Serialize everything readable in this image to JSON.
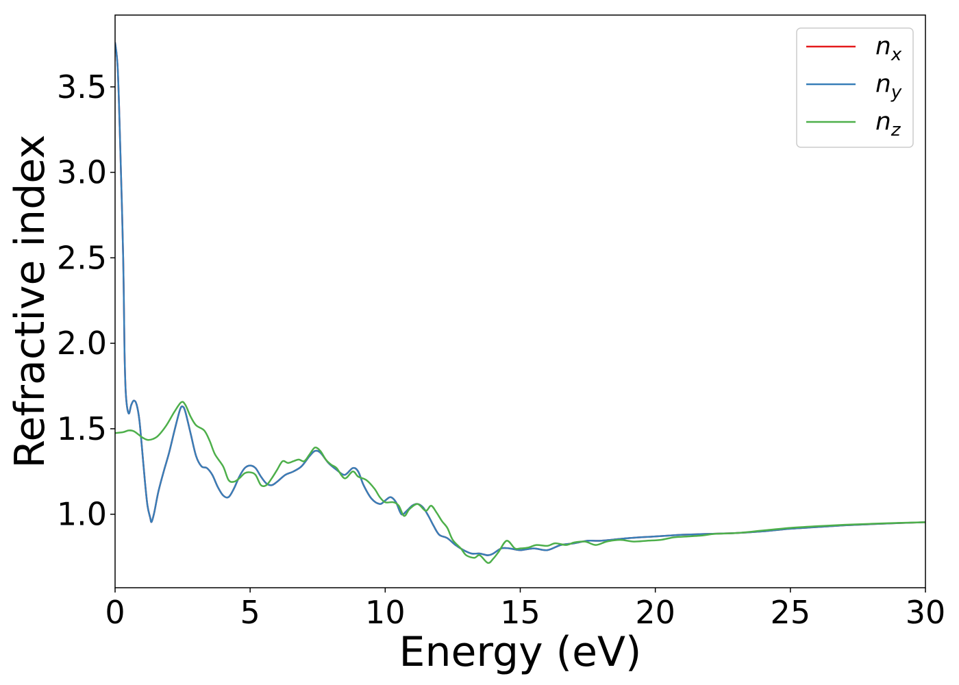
{
  "chart_data": {
    "type": "line",
    "title": "",
    "xlabel": "Energy (eV)",
    "ylabel": "Refractive index",
    "xlim": [
      0,
      30
    ],
    "ylim": [
      0.57,
      3.92
    ],
    "xticks": [
      0,
      5,
      10,
      15,
      20,
      25,
      30
    ],
    "xtick_labels": [
      "0",
      "5",
      "10",
      "15",
      "20",
      "25",
      "30"
    ],
    "yticks": [
      1.0,
      1.5,
      2.0,
      2.5,
      3.0,
      3.5
    ],
    "ytick_labels": [
      "1.0",
      "1.5",
      "2.0",
      "2.5",
      "3.0",
      "3.5"
    ],
    "grid": false,
    "legend_position": "top-right",
    "series": [
      {
        "name": "n",
        "subscript": "x",
        "color": "#e41a1c",
        "points": [
          [
            0,
            3.76
          ],
          [
            0.1,
            3.6
          ],
          [
            0.2,
            3.1
          ],
          [
            0.3,
            2.5
          ],
          [
            0.35,
            1.95
          ],
          [
            0.4,
            1.7
          ],
          [
            0.5,
            1.59
          ],
          [
            0.6,
            1.64
          ],
          [
            0.7,
            1.665
          ],
          [
            0.8,
            1.64
          ],
          [
            0.9,
            1.55
          ],
          [
            1.0,
            1.38
          ],
          [
            1.1,
            1.2
          ],
          [
            1.2,
            1.05
          ],
          [
            1.3,
            0.98
          ],
          [
            1.35,
            0.955
          ],
          [
            1.45,
            1.01
          ],
          [
            1.6,
            1.13
          ],
          [
            1.8,
            1.25
          ],
          [
            2.0,
            1.36
          ],
          [
            2.2,
            1.49
          ],
          [
            2.4,
            1.61
          ],
          [
            2.5,
            1.63
          ],
          [
            2.6,
            1.6
          ],
          [
            2.8,
            1.47
          ],
          [
            3.0,
            1.34
          ],
          [
            3.2,
            1.28
          ],
          [
            3.4,
            1.27
          ],
          [
            3.6,
            1.23
          ],
          [
            3.8,
            1.16
          ],
          [
            4.0,
            1.11
          ],
          [
            4.2,
            1.1
          ],
          [
            4.4,
            1.15
          ],
          [
            4.6,
            1.22
          ],
          [
            4.8,
            1.27
          ],
          [
            5.0,
            1.285
          ],
          [
            5.2,
            1.27
          ],
          [
            5.4,
            1.22
          ],
          [
            5.6,
            1.18
          ],
          [
            5.8,
            1.17
          ],
          [
            6.0,
            1.19
          ],
          [
            6.3,
            1.23
          ],
          [
            6.6,
            1.25
          ],
          [
            6.9,
            1.28
          ],
          [
            7.2,
            1.34
          ],
          [
            7.4,
            1.37
          ],
          [
            7.6,
            1.36
          ],
          [
            7.9,
            1.3
          ],
          [
            8.2,
            1.26
          ],
          [
            8.5,
            1.23
          ],
          [
            8.8,
            1.27
          ],
          [
            9.0,
            1.25
          ],
          [
            9.2,
            1.17
          ],
          [
            9.5,
            1.09
          ],
          [
            9.8,
            1.06
          ],
          [
            10.0,
            1.08
          ],
          [
            10.2,
            1.1
          ],
          [
            10.4,
            1.07
          ],
          [
            10.6,
            1.0
          ],
          [
            10.8,
            1.02
          ],
          [
            11.0,
            1.05
          ],
          [
            11.2,
            1.06
          ],
          [
            11.4,
            1.04
          ],
          [
            11.6,
            0.99
          ],
          [
            11.8,
            0.93
          ],
          [
            12.0,
            0.88
          ],
          [
            12.3,
            0.86
          ],
          [
            12.6,
            0.82
          ],
          [
            12.9,
            0.79
          ],
          [
            13.2,
            0.77
          ],
          [
            13.5,
            0.77
          ],
          [
            13.8,
            0.76
          ],
          [
            14.0,
            0.77
          ],
          [
            14.3,
            0.8
          ],
          [
            14.6,
            0.8
          ],
          [
            15.0,
            0.79
          ],
          [
            15.5,
            0.8
          ],
          [
            16.0,
            0.79
          ],
          [
            16.5,
            0.82
          ],
          [
            17.0,
            0.83
          ],
          [
            17.5,
            0.845
          ],
          [
            18.0,
            0.845
          ],
          [
            19.0,
            0.86
          ],
          [
            20.0,
            0.87
          ],
          [
            20.5,
            0.875
          ],
          [
            21.0,
            0.88
          ],
          [
            22.0,
            0.885
          ],
          [
            23.0,
            0.89
          ],
          [
            24.0,
            0.9
          ],
          [
            25.0,
            0.915
          ],
          [
            26.0,
            0.925
          ],
          [
            27.0,
            0.935
          ],
          [
            28.0,
            0.942
          ],
          [
            29.0,
            0.948
          ],
          [
            30.0,
            0.953
          ]
        ]
      },
      {
        "name": "n",
        "subscript": "y",
        "color": "#377eb8",
        "points": [
          [
            0,
            3.76
          ],
          [
            0.1,
            3.6
          ],
          [
            0.2,
            3.1
          ],
          [
            0.3,
            2.5
          ],
          [
            0.35,
            1.95
          ],
          [
            0.4,
            1.7
          ],
          [
            0.5,
            1.59
          ],
          [
            0.6,
            1.64
          ],
          [
            0.7,
            1.665
          ],
          [
            0.8,
            1.64
          ],
          [
            0.9,
            1.55
          ],
          [
            1.0,
            1.38
          ],
          [
            1.1,
            1.2
          ],
          [
            1.2,
            1.05
          ],
          [
            1.3,
            0.98
          ],
          [
            1.35,
            0.955
          ],
          [
            1.45,
            1.01
          ],
          [
            1.6,
            1.13
          ],
          [
            1.8,
            1.25
          ],
          [
            2.0,
            1.36
          ],
          [
            2.2,
            1.49
          ],
          [
            2.4,
            1.61
          ],
          [
            2.5,
            1.63
          ],
          [
            2.6,
            1.6
          ],
          [
            2.8,
            1.47
          ],
          [
            3.0,
            1.34
          ],
          [
            3.2,
            1.28
          ],
          [
            3.4,
            1.27
          ],
          [
            3.6,
            1.23
          ],
          [
            3.8,
            1.16
          ],
          [
            4.0,
            1.11
          ],
          [
            4.2,
            1.1
          ],
          [
            4.4,
            1.15
          ],
          [
            4.6,
            1.22
          ],
          [
            4.8,
            1.27
          ],
          [
            5.0,
            1.285
          ],
          [
            5.2,
            1.27
          ],
          [
            5.4,
            1.22
          ],
          [
            5.6,
            1.18
          ],
          [
            5.8,
            1.17
          ],
          [
            6.0,
            1.19
          ],
          [
            6.3,
            1.23
          ],
          [
            6.6,
            1.25
          ],
          [
            6.9,
            1.28
          ],
          [
            7.2,
            1.34
          ],
          [
            7.4,
            1.37
          ],
          [
            7.6,
            1.36
          ],
          [
            7.9,
            1.3
          ],
          [
            8.2,
            1.26
          ],
          [
            8.5,
            1.23
          ],
          [
            8.8,
            1.27
          ],
          [
            9.0,
            1.25
          ],
          [
            9.2,
            1.17
          ],
          [
            9.5,
            1.09
          ],
          [
            9.8,
            1.06
          ],
          [
            10.0,
            1.08
          ],
          [
            10.2,
            1.1
          ],
          [
            10.4,
            1.07
          ],
          [
            10.6,
            1.0
          ],
          [
            10.8,
            1.02
          ],
          [
            11.0,
            1.05
          ],
          [
            11.2,
            1.06
          ],
          [
            11.4,
            1.04
          ],
          [
            11.6,
            0.99
          ],
          [
            11.8,
            0.93
          ],
          [
            12.0,
            0.88
          ],
          [
            12.3,
            0.86
          ],
          [
            12.6,
            0.82
          ],
          [
            12.9,
            0.79
          ],
          [
            13.2,
            0.77
          ],
          [
            13.5,
            0.77
          ],
          [
            13.8,
            0.76
          ],
          [
            14.0,
            0.77
          ],
          [
            14.3,
            0.8
          ],
          [
            14.6,
            0.8
          ],
          [
            15.0,
            0.79
          ],
          [
            15.5,
            0.8
          ],
          [
            16.0,
            0.79
          ],
          [
            16.5,
            0.82
          ],
          [
            17.0,
            0.83
          ],
          [
            17.5,
            0.845
          ],
          [
            18.0,
            0.845
          ],
          [
            19.0,
            0.86
          ],
          [
            20.0,
            0.87
          ],
          [
            20.5,
            0.875
          ],
          [
            21.0,
            0.88
          ],
          [
            22.0,
            0.885
          ],
          [
            23.0,
            0.89
          ],
          [
            24.0,
            0.9
          ],
          [
            25.0,
            0.915
          ],
          [
            26.0,
            0.925
          ],
          [
            27.0,
            0.935
          ],
          [
            28.0,
            0.942
          ],
          [
            29.0,
            0.948
          ],
          [
            30.0,
            0.953
          ]
        ]
      },
      {
        "name": "n",
        "subscript": "z",
        "color": "#4daf4a",
        "points": [
          [
            0,
            1.475
          ],
          [
            0.3,
            1.48
          ],
          [
            0.5,
            1.49
          ],
          [
            0.7,
            1.485
          ],
          [
            1.0,
            1.45
          ],
          [
            1.2,
            1.435
          ],
          [
            1.4,
            1.44
          ],
          [
            1.6,
            1.46
          ],
          [
            1.9,
            1.52
          ],
          [
            2.2,
            1.6
          ],
          [
            2.45,
            1.655
          ],
          [
            2.6,
            1.64
          ],
          [
            2.8,
            1.57
          ],
          [
            3.0,
            1.52
          ],
          [
            3.3,
            1.49
          ],
          [
            3.5,
            1.43
          ],
          [
            3.7,
            1.35
          ],
          [
            4.0,
            1.28
          ],
          [
            4.2,
            1.2
          ],
          [
            4.4,
            1.19
          ],
          [
            4.6,
            1.21
          ],
          [
            4.8,
            1.24
          ],
          [
            5.0,
            1.245
          ],
          [
            5.2,
            1.23
          ],
          [
            5.4,
            1.17
          ],
          [
            5.6,
            1.17
          ],
          [
            5.8,
            1.21
          ],
          [
            6.0,
            1.26
          ],
          [
            6.2,
            1.31
          ],
          [
            6.4,
            1.3
          ],
          [
            6.6,
            1.31
          ],
          [
            6.8,
            1.32
          ],
          [
            7.0,
            1.31
          ],
          [
            7.2,
            1.35
          ],
          [
            7.4,
            1.39
          ],
          [
            7.6,
            1.37
          ],
          [
            7.8,
            1.32
          ],
          [
            8.0,
            1.29
          ],
          [
            8.2,
            1.27
          ],
          [
            8.5,
            1.21
          ],
          [
            8.8,
            1.25
          ],
          [
            9.0,
            1.22
          ],
          [
            9.3,
            1.2
          ],
          [
            9.6,
            1.15
          ],
          [
            9.8,
            1.1
          ],
          [
            10.0,
            1.07
          ],
          [
            10.3,
            1.07
          ],
          [
            10.5,
            1.05
          ],
          [
            10.7,
            0.99
          ],
          [
            10.9,
            1.03
          ],
          [
            11.2,
            1.06
          ],
          [
            11.5,
            1.02
          ],
          [
            11.7,
            1.05
          ],
          [
            11.9,
            1.01
          ],
          [
            12.1,
            0.96
          ],
          [
            12.3,
            0.92
          ],
          [
            12.5,
            0.85
          ],
          [
            12.8,
            0.8
          ],
          [
            13.0,
            0.76
          ],
          [
            13.3,
            0.745
          ],
          [
            13.5,
            0.76
          ],
          [
            13.8,
            0.715
          ],
          [
            14.0,
            0.74
          ],
          [
            14.2,
            0.78
          ],
          [
            14.5,
            0.845
          ],
          [
            14.8,
            0.8
          ],
          [
            15.0,
            0.8
          ],
          [
            15.3,
            0.805
          ],
          [
            15.6,
            0.82
          ],
          [
            16.0,
            0.815
          ],
          [
            16.3,
            0.83
          ],
          [
            16.7,
            0.82
          ],
          [
            17.0,
            0.835
          ],
          [
            17.4,
            0.84
          ],
          [
            17.8,
            0.82
          ],
          [
            18.2,
            0.84
          ],
          [
            18.7,
            0.85
          ],
          [
            19.2,
            0.84
          ],
          [
            19.7,
            0.845
          ],
          [
            20.2,
            0.85
          ],
          [
            20.7,
            0.865
          ],
          [
            21.2,
            0.87
          ],
          [
            21.7,
            0.875
          ],
          [
            22.2,
            0.885
          ],
          [
            23.0,
            0.89
          ],
          [
            24.0,
            0.905
          ],
          [
            25.0,
            0.92
          ],
          [
            26.0,
            0.93
          ],
          [
            27.0,
            0.938
          ],
          [
            28.0,
            0.944
          ],
          [
            29.0,
            0.949
          ],
          [
            30.0,
            0.953
          ]
        ]
      }
    ]
  }
}
